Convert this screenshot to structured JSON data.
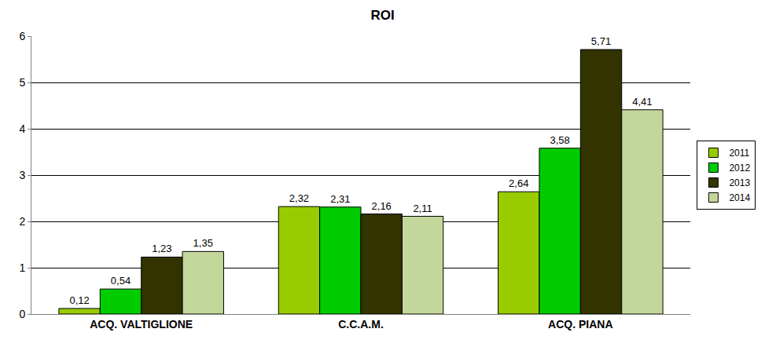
{
  "chart_data": {
    "type": "bar",
    "title": "ROI",
    "categories": [
      "ACQ. VALTIGLIONE",
      "C.C.A.M.",
      "ACQ. PIANA"
    ],
    "series": [
      {
        "name": "2011",
        "color": "#99cc00",
        "values": [
          0.12,
          2.32,
          2.64
        ],
        "value_labels": [
          "0,12",
          "2,32",
          "2,64"
        ]
      },
      {
        "name": "2012",
        "color": "#00cc00",
        "values": [
          0.54,
          2.31,
          3.58
        ],
        "value_labels": [
          "0,54",
          "2,31",
          "3,58"
        ]
      },
      {
        "name": "2013",
        "color": "#333300",
        "values": [
          1.23,
          2.16,
          5.71
        ],
        "value_labels": [
          "1,23",
          "2,16",
          "5,71"
        ]
      },
      {
        "name": "2014",
        "color": "#c4d79b",
        "values": [
          1.35,
          2.11,
          4.41
        ],
        "value_labels": [
          "1,35",
          "2,11",
          "4,41"
        ]
      }
    ],
    "ylim": [
      0,
      6
    ],
    "yticks": [
      0,
      1,
      2,
      3,
      4,
      5,
      6
    ],
    "grid": true,
    "legend": "right",
    "data_labels": true
  }
}
